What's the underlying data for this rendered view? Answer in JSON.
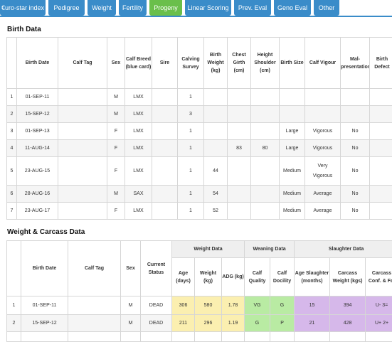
{
  "tabs": [
    {
      "label": "€uro-star index"
    },
    {
      "label": "Pedigree"
    },
    {
      "label": "Weight"
    },
    {
      "label": "Fertility"
    },
    {
      "label": "Progeny"
    },
    {
      "label": "Linear Scoring"
    },
    {
      "label": "Prev. Eval"
    },
    {
      "label": "Geno Eval"
    },
    {
      "label": "Other"
    }
  ],
  "active_tab": "Progeny",
  "birth": {
    "title": "Birth Data",
    "headers": {
      "birth_date": "Birth Date",
      "calf_tag": "Calf Tag",
      "sex": "Sex",
      "calf_breed": "Calf Breed (blue card)",
      "sire": "Sire",
      "calving_survey": "Calving Survey",
      "birth_weight": "Birth Weight (kg)",
      "chest_girth": "Chest Girth (cm)",
      "height_shoulder": "Height Shoulder (cm)",
      "birth_size": "Birth Size",
      "calf_vigour": "Calf Vigour",
      "malpresentation": "Mal-presentation",
      "birth_defect": "Birth Defect"
    },
    "rows": [
      {
        "n": "1",
        "date": "01-SEP-11",
        "tag": "",
        "sex": "M",
        "breed": "LMX",
        "sire": "",
        "survey": "1",
        "weight": "",
        "girth": "",
        "height": "",
        "size": "",
        "vigour": "",
        "mal": "",
        "defect": ""
      },
      {
        "n": "2",
        "date": "15-SEP-12",
        "tag": "",
        "sex": "M",
        "breed": "LMX",
        "sire": "",
        "survey": "3",
        "weight": "",
        "girth": "",
        "height": "",
        "size": "",
        "vigour": "",
        "mal": "",
        "defect": ""
      },
      {
        "n": "3",
        "date": "01-SEP-13",
        "tag": "",
        "sex": "F",
        "breed": "LMX",
        "sire": "",
        "survey": "1",
        "weight": "",
        "girth": "",
        "height": "",
        "size": "Large",
        "vigour": "Vigorous",
        "mal": "No",
        "defect": ""
      },
      {
        "n": "4",
        "date": "11-AUG-14",
        "tag": "",
        "sex": "F",
        "breed": "LMX",
        "sire": "",
        "survey": "1",
        "weight": "",
        "girth": "83",
        "height": "80",
        "size": "Large",
        "vigour": "Vigorous",
        "mal": "No",
        "defect": ""
      },
      {
        "n": "5",
        "date": "23-AUG-15",
        "tag": "",
        "sex": "F",
        "breed": "LMX",
        "sire": "",
        "survey": "1",
        "weight": "44",
        "girth": "",
        "height": "",
        "size": "Medium",
        "vigour": "Very Vigorous",
        "mal": "No",
        "defect": ""
      },
      {
        "n": "6",
        "date": "28-AUG-16",
        "tag": "",
        "sex": "M",
        "breed": "SAX",
        "sire": "",
        "survey": "1",
        "weight": "54",
        "girth": "",
        "height": "",
        "size": "Medium",
        "vigour": "Average",
        "mal": "No",
        "defect": ""
      },
      {
        "n": "7",
        "date": "23-AUG-17",
        "tag": "",
        "sex": "F",
        "breed": "LMX",
        "sire": "",
        "survey": "1",
        "weight": "52",
        "girth": "",
        "height": "",
        "size": "Medium",
        "vigour": "Average",
        "mal": "No",
        "defect": ""
      }
    ]
  },
  "carcass": {
    "title": "Weight & Carcass Data",
    "groups": {
      "weight": "Weight Data",
      "weaning": "Weaning Data",
      "slaughter": "Slaughter Data"
    },
    "headers": {
      "birth_date": "Birth Date",
      "calf_tag": "Calf Tag",
      "sex": "Sex",
      "current_status": "Current Status",
      "age": "Age (days)",
      "weight": "Weight (kg)",
      "adg": "ADG (kg)",
      "calf_quality": "Calf Quality",
      "calf_docility": "Calf Docility",
      "age_slaughter": "Age Slaughter (months)",
      "carcass_weight": "Carcass Weight (kgs)",
      "carcass_conf": "Carcass Conf. & Fat"
    },
    "rows": [
      {
        "n": "1",
        "date": "01-SEP-11",
        "tag": "",
        "sex": "M",
        "status": "DEAD",
        "age": "306",
        "weight": "580",
        "adg": "1.78",
        "quality": "VG",
        "docility": "G",
        "age_sl": "15",
        "c_weight": "394",
        "conf": "U- 3="
      },
      {
        "n": "2",
        "date": "15-SEP-12",
        "tag": "",
        "sex": "M",
        "status": "DEAD",
        "age": "211",
        "weight": "296",
        "adg": "1.19",
        "quality": "G",
        "docility": "P",
        "age_sl": "21",
        "c_weight": "428",
        "conf": "U+ 2+"
      }
    ]
  }
}
